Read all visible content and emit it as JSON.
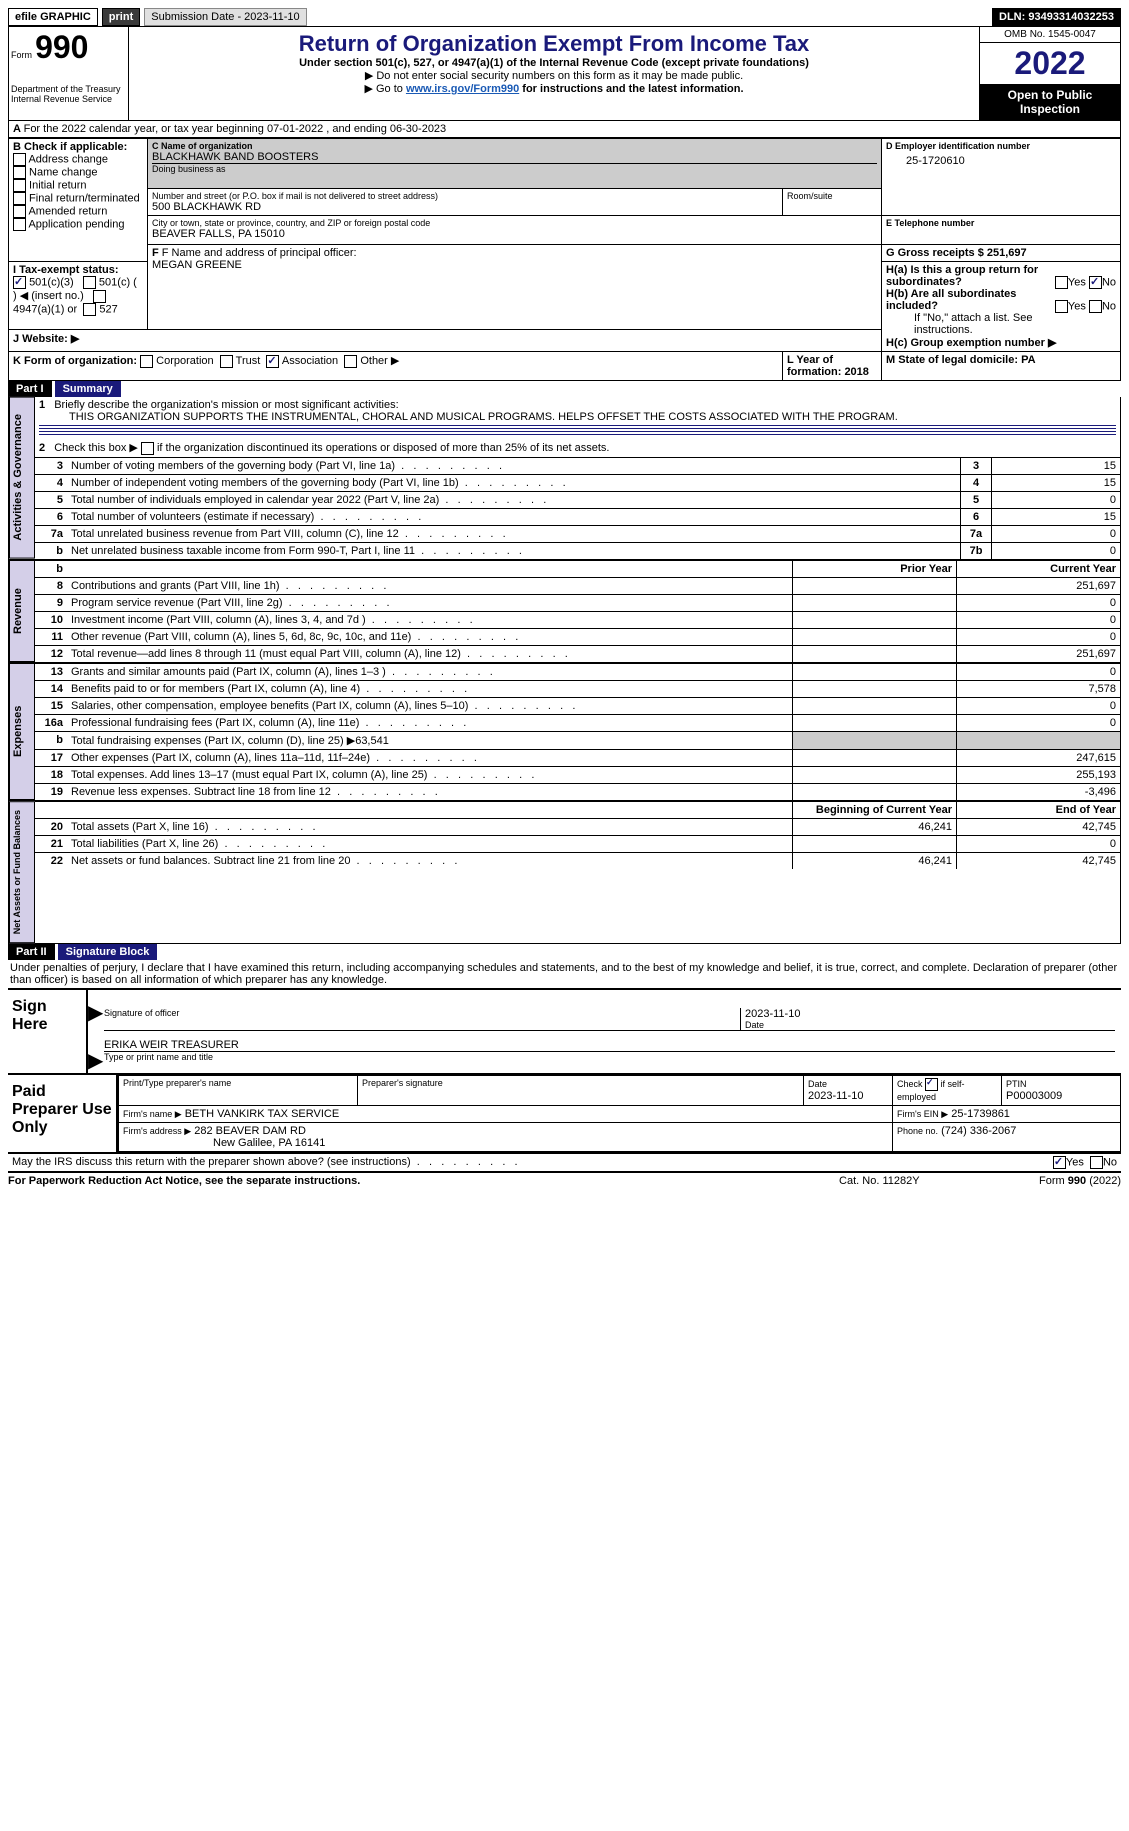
{
  "topbar": {
    "efile": "efile GRAPHIC",
    "print": "print",
    "submission_label": "Submission Date - 2023-11-10",
    "dln_label": "DLN: 93493314032253"
  },
  "header": {
    "form_prefix": "Form",
    "form_number": "990",
    "title": "Return of Organization Exempt From Income Tax",
    "subtitle": "Under section 501(c), 527, or 4947(a)(1) of the Internal Revenue Code (except private foundations)",
    "note1": "▶ Do not enter social security numbers on this form as it may be made public.",
    "note2_prefix": "▶ Go to ",
    "note2_link": "www.irs.gov/Form990",
    "note2_suffix": " for instructions and the latest information.",
    "dept": "Department of the Treasury\nInternal Revenue Service",
    "omb": "OMB No. 1545-0047",
    "year": "2022",
    "inspection": "Open to Public Inspection"
  },
  "line_a": "For the 2022 calendar year, or tax year beginning 07-01-2022    , and ending 06-30-2023",
  "section_b": {
    "label": "B Check if applicable:",
    "opts": [
      "Address change",
      "Name change",
      "Initial return",
      "Final return/terminated",
      "Amended return",
      "Application pending"
    ]
  },
  "section_c": {
    "name_label": "C Name of organization",
    "name": "BLACKHAWK BAND BOOSTERS",
    "dba_label": "Doing business as",
    "addr_label": "Number and street (or P.O. box if mail is not delivered to street address)",
    "addr": "500 BLACKHAWK RD",
    "room_label": "Room/suite",
    "city_label": "City or town, state or province, country, and ZIP or foreign postal code",
    "city": "BEAVER FALLS, PA  15010"
  },
  "section_d": {
    "label": "D Employer identification number",
    "value": "25-1720610"
  },
  "section_e": {
    "label": "E Telephone number",
    "value": ""
  },
  "section_g": {
    "label": "G Gross receipts $ 251,697"
  },
  "section_f": {
    "label": "F Name and address of principal officer:",
    "name": "MEGAN GREENE"
  },
  "section_h": {
    "ha": "H(a)  Is this a group return for subordinates?",
    "hb": "H(b)  Are all subordinates included?",
    "hb_note": "If \"No,\" attach a list. See instructions.",
    "hc": "H(c)  Group exemption number ▶"
  },
  "section_i": {
    "label": "I   Tax-exempt status:",
    "opts": [
      "501(c)(3)",
      "501(c) (  ) ◀ (insert no.)",
      "4947(a)(1) or",
      "527"
    ]
  },
  "section_j": {
    "label": "J   Website: ▶"
  },
  "section_k": {
    "label": "K Form of organization:",
    "opts": [
      "Corporation",
      "Trust",
      "Association",
      "Other ▶"
    ]
  },
  "section_l": {
    "label": "L Year of formation: 2018"
  },
  "section_m": {
    "label": "M State of legal domicile: PA"
  },
  "part1": {
    "label": "Part I",
    "title": "Summary",
    "q1": "Briefly describe the organization's mission or most significant activities:",
    "mission": "THIS ORGANIZATION SUPPORTS THE INSTRUMENTAL, CHORAL AND MUSICAL PROGRAMS. HELPS OFFSET THE COSTS ASSOCIATED WITH THE PROGRAM.",
    "q2": "Check this box ▶     if the organization discontinued its operations or disposed of more than 25% of its net assets.",
    "rows_gov": [
      {
        "n": "3",
        "t": "Number of voting members of the governing body (Part VI, line 1a)",
        "l": "3",
        "v": "15"
      },
      {
        "n": "4",
        "t": "Number of independent voting members of the governing body (Part VI, line 1b)",
        "l": "4",
        "v": "15"
      },
      {
        "n": "5",
        "t": "Total number of individuals employed in calendar year 2022 (Part V, line 2a)",
        "l": "5",
        "v": "0"
      },
      {
        "n": "6",
        "t": "Total number of volunteers (estimate if necessary)",
        "l": "6",
        "v": "15"
      },
      {
        "n": "7a",
        "t": "Total unrelated business revenue from Part VIII, column (C), line 12",
        "l": "7a",
        "v": "0"
      },
      {
        "n": "b",
        "t": "Net unrelated business taxable income from Form 990-T, Part I, line 11",
        "l": "7b",
        "v": "0"
      }
    ],
    "col_prior": "Prior Year",
    "col_current": "Current Year",
    "rows_rev": [
      {
        "n": "8",
        "t": "Contributions and grants (Part VIII, line 1h)",
        "p": "",
        "c": "251,697"
      },
      {
        "n": "9",
        "t": "Program service revenue (Part VIII, line 2g)",
        "p": "",
        "c": "0"
      },
      {
        "n": "10",
        "t": "Investment income (Part VIII, column (A), lines 3, 4, and 7d )",
        "p": "",
        "c": "0"
      },
      {
        "n": "11",
        "t": "Other revenue (Part VIII, column (A), lines 5, 6d, 8c, 9c, 10c, and 11e)",
        "p": "",
        "c": "0"
      },
      {
        "n": "12",
        "t": "Total revenue—add lines 8 through 11 (must equal Part VIII, column (A), line 12)",
        "p": "",
        "c": "251,697"
      }
    ],
    "rows_exp": [
      {
        "n": "13",
        "t": "Grants and similar amounts paid (Part IX, column (A), lines 1–3 )",
        "p": "",
        "c": "0"
      },
      {
        "n": "14",
        "t": "Benefits paid to or for members (Part IX, column (A), line 4)",
        "p": "",
        "c": "7,578"
      },
      {
        "n": "15",
        "t": "Salaries, other compensation, employee benefits (Part IX, column (A), lines 5–10)",
        "p": "",
        "c": "0"
      },
      {
        "n": "16a",
        "t": "Professional fundraising fees (Part IX, column (A), line 11e)",
        "p": "",
        "c": "0"
      },
      {
        "n": "b",
        "t": "Total fundraising expenses (Part IX, column (D), line 25) ▶63,541",
        "gray": true
      },
      {
        "n": "17",
        "t": "Other expenses (Part IX, column (A), lines 11a–11d, 11f–24e)",
        "p": "",
        "c": "247,615"
      },
      {
        "n": "18",
        "t": "Total expenses. Add lines 13–17 (must equal Part IX, column (A), line 25)",
        "p": "",
        "c": "255,193"
      },
      {
        "n": "19",
        "t": "Revenue less expenses. Subtract line 18 from line 12",
        "p": "",
        "c": "-3,496"
      }
    ],
    "col_begin": "Beginning of Current Year",
    "col_end": "End of Year",
    "rows_net": [
      {
        "n": "20",
        "t": "Total assets (Part X, line 16)",
        "p": "46,241",
        "c": "42,745"
      },
      {
        "n": "21",
        "t": "Total liabilities (Part X, line 26)",
        "p": "",
        "c": "0"
      },
      {
        "n": "22",
        "t": "Net assets or fund balances. Subtract line 21 from line 20",
        "p": "46,241",
        "c": "42,745"
      }
    ],
    "sections": {
      "gov": "Activities & Governance",
      "rev": "Revenue",
      "exp": "Expenses",
      "net": "Net Assets or Fund Balances"
    }
  },
  "part2": {
    "label": "Part II",
    "title": "Signature Block",
    "declaration": "Under penalties of perjury, I declare that I have examined this return, including accompanying schedules and statements, and to the best of my knowledge and belief, it is true, correct, and complete. Declaration of preparer (other than officer) is based on all information of which preparer has any knowledge.",
    "sign_here": "Sign Here",
    "sig_officer": "Signature of officer",
    "sig_date": "2023-11-10",
    "date_label": "Date",
    "officer_name": "ERIKA WEIR  TREASURER",
    "officer_type": "Type or print name and title",
    "paid": "Paid Preparer Use Only",
    "prep_name_label": "Print/Type preparer's name",
    "prep_sig_label": "Preparer's signature",
    "prep_date_label": "Date",
    "prep_date": "2023-11-10",
    "check_if": "Check       if self-employed",
    "ptin_label": "PTIN",
    "ptin": "P00003009",
    "firm_name_label": "Firm's name    ▶",
    "firm_name": "BETH VANKIRK TAX SERVICE",
    "firm_ein_label": "Firm's EIN ▶",
    "firm_ein": "25-1739861",
    "firm_addr_label": "Firm's address ▶",
    "firm_addr": "282 BEAVER DAM RD",
    "firm_city": "New Galilee, PA  16141",
    "phone_label": "Phone no.",
    "phone": "(724) 336-2067",
    "discuss": "May the IRS discuss this return with the preparer shown above? (see instructions)"
  },
  "footer": {
    "paperwork": "For Paperwork Reduction Act Notice, see the separate instructions.",
    "cat": "Cat. No. 11282Y",
    "form": "Form 990 (2022)"
  }
}
